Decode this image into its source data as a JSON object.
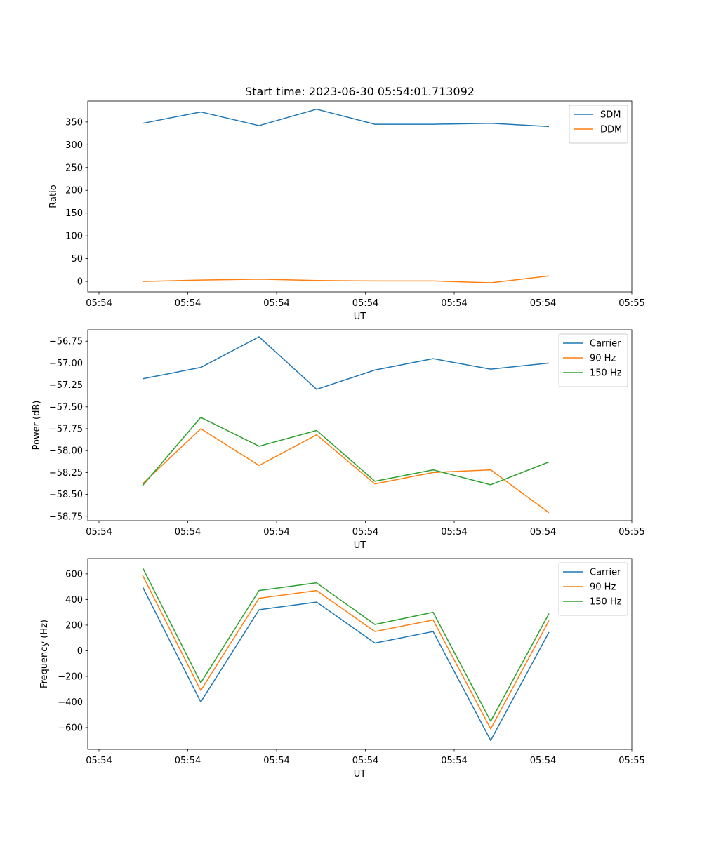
{
  "figure": {
    "title": "Start time: 2023-06-30 05:54:01.713092"
  },
  "chart_data": [
    {
      "type": "line",
      "ylabel": "Ratio",
      "xlabel": "UT",
      "x_tick_labels": [
        "05:54",
        "05:54",
        "05:54",
        "05:54",
        "05:54",
        "05:54",
        "05:55"
      ],
      "ylim": [
        -23,
        396
      ],
      "yticks": [
        0,
        50,
        100,
        150,
        200,
        250,
        300,
        350
      ],
      "legend_position": "upper right",
      "series": [
        {
          "name": "SDM",
          "color": "#1f77b4",
          "values": [
            347,
            372,
            342,
            378,
            345,
            345,
            347,
            340
          ]
        },
        {
          "name": "DDM",
          "color": "#ff7f0e",
          "values": [
            0,
            3,
            5,
            2,
            1,
            1,
            -3,
            12
          ]
        }
      ]
    },
    {
      "type": "line",
      "ylabel": "Power (dB)",
      "xlabel": "UT",
      "x_tick_labels": [
        "05:54",
        "05:54",
        "05:54",
        "05:54",
        "05:54",
        "05:54",
        "05:55"
      ],
      "ylim": [
        -58.8,
        -56.62
      ],
      "yticks": [
        -58.75,
        -58.5,
        -58.25,
        -58.0,
        -57.75,
        -57.5,
        -57.25,
        -57.0,
        -56.75
      ],
      "ytick_labels": [
        "−58.75",
        "−58.50",
        "−58.25",
        "−58.00",
        "−57.75",
        "−57.50",
        "−57.25",
        "−57.00",
        "−56.75"
      ],
      "legend_position": "upper right",
      "series": [
        {
          "name": "Carrier",
          "color": "#1f77b4",
          "values": [
            -57.18,
            -57.05,
            -56.7,
            -57.3,
            -57.08,
            -56.95,
            -57.07,
            -57.0
          ]
        },
        {
          "name": "90 Hz",
          "color": "#ff7f0e",
          "values": [
            -58.38,
            -57.75,
            -58.17,
            -57.82,
            -58.38,
            -58.25,
            -58.22,
            -58.71
          ]
        },
        {
          "name": "150 Hz",
          "color": "#2ca02c",
          "values": [
            -58.4,
            -57.62,
            -57.95,
            -57.77,
            -58.35,
            -58.22,
            -58.39,
            -58.13
          ]
        }
      ]
    },
    {
      "type": "line",
      "ylabel": "Frequency (Hz)",
      "xlabel": "UT",
      "x_tick_labels": [
        "05:54",
        "05:54",
        "05:54",
        "05:54",
        "05:54",
        "05:54",
        "05:55"
      ],
      "ylim": [
        -770,
        720
      ],
      "yticks": [
        -600,
        -400,
        -200,
        0,
        200,
        400,
        600
      ],
      "ytick_labels": [
        "−600",
        "−400",
        "−200",
        "0",
        "200",
        "400",
        "600"
      ],
      "legend_position": "upper right",
      "series": [
        {
          "name": "Carrier",
          "color": "#1f77b4",
          "values": [
            500,
            -400,
            320,
            380,
            60,
            150,
            -700,
            145
          ]
        },
        {
          "name": "90 Hz",
          "color": "#ff7f0e",
          "values": [
            590,
            -310,
            410,
            470,
            150,
            240,
            -610,
            235
          ]
        },
        {
          "name": "150 Hz",
          "color": "#2ca02c",
          "values": [
            650,
            -250,
            470,
            530,
            205,
            300,
            -550,
            290
          ]
        }
      ]
    }
  ]
}
